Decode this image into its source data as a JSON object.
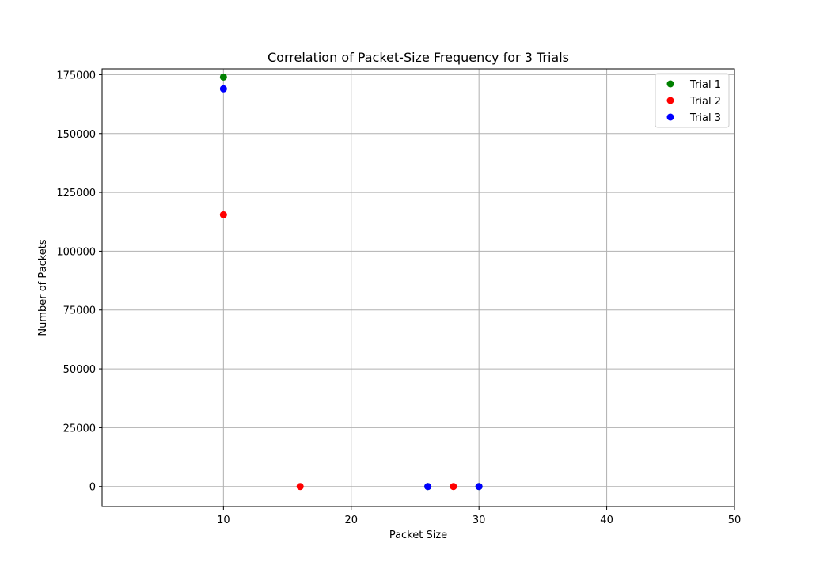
{
  "chart_data": {
    "type": "scatter",
    "title": "Correlation of Packet-Size Frequency for 3 Trials",
    "xlabel": "Packet Size",
    "ylabel": "Number of Packets",
    "xlim": [
      0.5,
      50
    ],
    "ylim": [
      -8500,
      177500
    ],
    "xticks": [
      10,
      20,
      30,
      40,
      50
    ],
    "yticks": [
      0,
      25000,
      50000,
      75000,
      100000,
      125000,
      150000,
      175000
    ],
    "xtick_labels": [
      "10",
      "20",
      "30",
      "40",
      "50"
    ],
    "ytick_labels": [
      "0",
      "25000",
      "50000",
      "75000",
      "100000",
      "125000",
      "150000",
      "175000"
    ],
    "grid": true,
    "legend_position": "top-right",
    "series": [
      {
        "name": "Trial 1",
        "color": "#008000",
        "points": [
          [
            10,
            174000
          ],
          [
            26,
            0
          ],
          [
            30,
            0
          ]
        ]
      },
      {
        "name": "Trial 2",
        "color": "#ff0000",
        "points": [
          [
            10,
            115500
          ],
          [
            16,
            0
          ],
          [
            28,
            0
          ]
        ]
      },
      {
        "name": "Trial 3",
        "color": "#0000ff",
        "points": [
          [
            10,
            169000
          ],
          [
            26,
            0
          ],
          [
            30,
            0
          ]
        ]
      }
    ]
  }
}
